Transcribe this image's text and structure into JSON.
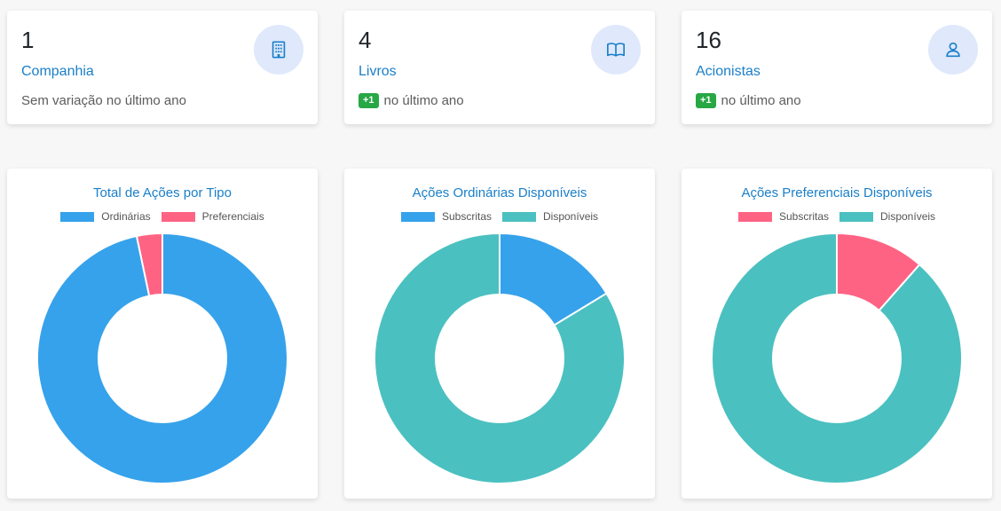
{
  "stats": [
    {
      "value": "1",
      "label": "Companhia",
      "delta": "",
      "footer": "Sem variação no último ano",
      "icon": "building-icon"
    },
    {
      "value": "4",
      "label": "Livros",
      "delta": "+1",
      "footer": "no último ano",
      "icon": "book-icon"
    },
    {
      "value": "16",
      "label": "Acionistas",
      "delta": "+1",
      "footer": "no último ano",
      "icon": "user-icon"
    }
  ],
  "colors": {
    "blue": "#36a2eb",
    "red": "#ff6384",
    "teal": "#4bc0c0",
    "accent": "#1a7fc9"
  },
  "chart_data": [
    {
      "type": "pie",
      "title": "Total de Ações por Tipo",
      "labels": [
        "Ordinárias",
        "Preferenciais"
      ],
      "values": [
        96.7,
        3.3
      ],
      "colors": [
        "#36a2eb",
        "#ff6384"
      ],
      "legend": "top"
    },
    {
      "type": "pie",
      "title": "Ações Ordinárias Disponíveis",
      "labels": [
        "Subscritas",
        "Disponíveis"
      ],
      "values": [
        16.3,
        83.7
      ],
      "colors": [
        "#36a2eb",
        "#4bc0c0"
      ],
      "legend": "top"
    },
    {
      "type": "pie",
      "title": "Ações Preferenciais Disponíveis",
      "labels": [
        "Subscritas",
        "Disponíveis"
      ],
      "values": [
        11.5,
        88.5
      ],
      "colors": [
        "#ff6384",
        "#4bc0c0"
      ],
      "legend": "top"
    }
  ]
}
